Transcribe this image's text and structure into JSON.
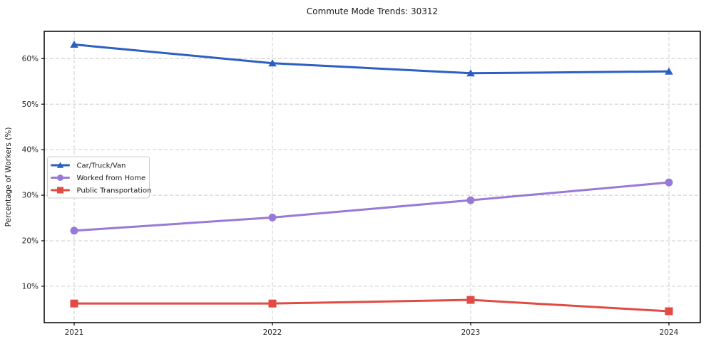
{
  "chart_data": {
    "type": "line",
    "title": "Commute Mode Trends: 30312",
    "xlabel": "",
    "ylabel": "Percentage of Workers (%)",
    "x": [
      "2021",
      "2022",
      "2023",
      "2024"
    ],
    "ylim": [
      2,
      66
    ],
    "yticks": [
      10,
      20,
      30,
      40,
      50,
      60
    ],
    "ytick_labels": [
      "10%",
      "20%",
      "30%",
      "40%",
      "50%",
      "60%"
    ],
    "grid": true,
    "grid_style": "dashed",
    "legend_position": "center-left",
    "background_color": "#ffffff",
    "grid_color": "#cccccc",
    "axis_color": "#000000",
    "series": [
      {
        "name": "Car/Truck/Van",
        "color": "#2b5fc2",
        "marker": "triangle",
        "values": [
          63.1,
          59.0,
          56.8,
          57.2
        ]
      },
      {
        "name": "Worked from Home",
        "color": "#9879d8",
        "marker": "circle",
        "values": [
          22.2,
          25.1,
          28.9,
          32.8
        ]
      },
      {
        "name": "Public Transportation",
        "color": "#e24a44",
        "marker": "square",
        "values": [
          6.2,
          6.2,
          7.0,
          4.5
        ]
      }
    ]
  }
}
